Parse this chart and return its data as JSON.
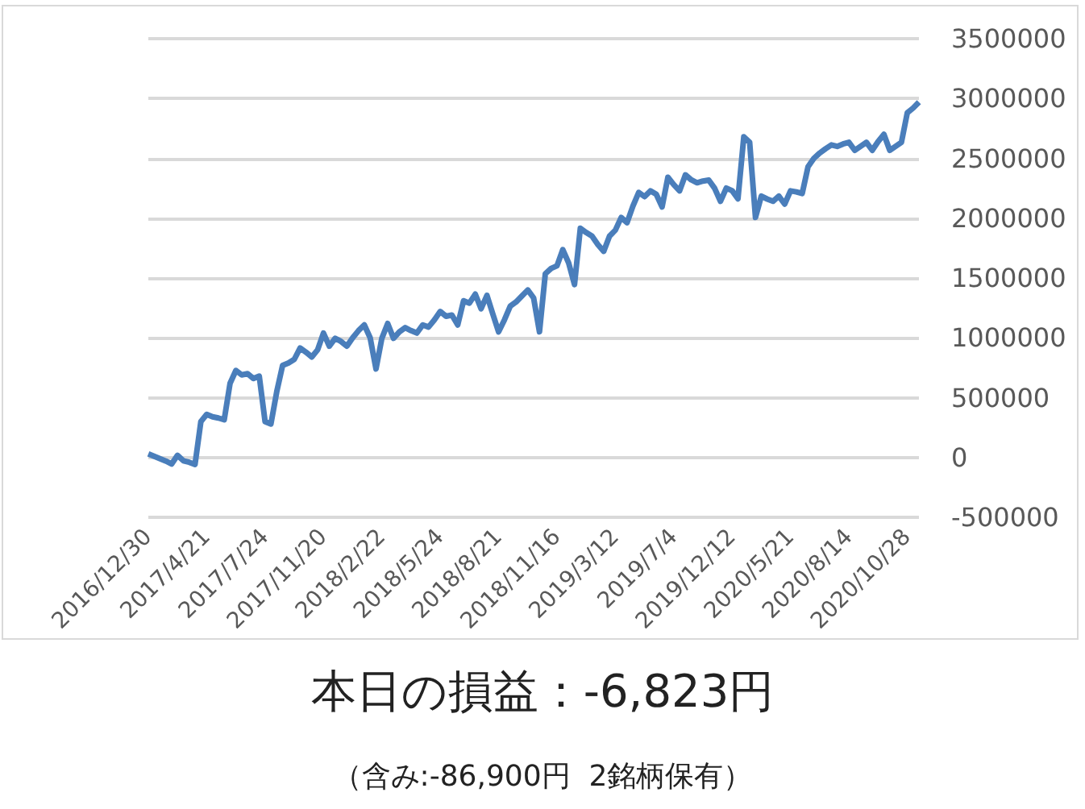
{
  "chart_data": {
    "type": "line",
    "title": "本日の損益：-6,823円",
    "subtitle": "（含み:-86,900円  2銘柄保有）",
    "categories": [
      "2016/12/30",
      null,
      null,
      null,
      null,
      null,
      null,
      null,
      null,
      null,
      "2017/4/21",
      null,
      null,
      null,
      null,
      null,
      null,
      null,
      null,
      null,
      "2017/7/24",
      null,
      null,
      null,
      null,
      null,
      null,
      null,
      null,
      null,
      "2017/11/20",
      null,
      null,
      null,
      null,
      null,
      null,
      null,
      null,
      null,
      "2018/2/22",
      null,
      null,
      null,
      null,
      null,
      null,
      null,
      null,
      null,
      "2018/5/24",
      null,
      null,
      null,
      null,
      null,
      null,
      null,
      null,
      null,
      "2018/8/21",
      null,
      null,
      null,
      null,
      null,
      null,
      null,
      null,
      null,
      "2018/11/16",
      null,
      null,
      null,
      null,
      null,
      null,
      null,
      null,
      null,
      "2019/3/12",
      null,
      null,
      null,
      null,
      null,
      null,
      null,
      null,
      null,
      "2019/7/4",
      null,
      null,
      null,
      null,
      null,
      null,
      null,
      null,
      null,
      "2019/12/12",
      null,
      null,
      null,
      null,
      null,
      null,
      null,
      null,
      null,
      "2020/5/21",
      null,
      null,
      null,
      null,
      null,
      null,
      null,
      null,
      null,
      "2020/8/14",
      null,
      null,
      null,
      null,
      null,
      null,
      null,
      null,
      null,
      "2020/10/28",
      null,
      null
    ],
    "series": [
      {
        "color": "#4a7ebb",
        "values": [
          30000,
          10000,
          -10000,
          -30000,
          -54000,
          18000,
          -27000,
          -40000,
          -58000,
          300000,
          360000,
          340000,
          330000,
          315000,
          620000,
          727000,
          690000,
          700000,
          660000,
          680000,
          300000,
          280000,
          550000,
          770000,
          790000,
          820000,
          915000,
          880000,
          840000,
          900000,
          1040000,
          930000,
          996000,
          970000,
          930000,
          1000000,
          1060000,
          1108000,
          1000000,
          740000,
          996000,
          1120000,
          996000,
          1050000,
          1085000,
          1060000,
          1040000,
          1108000,
          1090000,
          1150000,
          1220000,
          1180000,
          1190000,
          1108000,
          1310000,
          1290000,
          1365000,
          1243000,
          1355000,
          1200000,
          1050000,
          1150000,
          1265000,
          1300000,
          1350000,
          1400000,
          1333000,
          1050000,
          1535000,
          1580000,
          1602000,
          1737000,
          1625000,
          1445000,
          1916000,
          1880000,
          1850000,
          1780000,
          1723000,
          1850000,
          1900000,
          2006000,
          1962000,
          2100000,
          2215000,
          2180000,
          2228000,
          2200000,
          2094000,
          2342000,
          2280000,
          2228000,
          2362000,
          2320000,
          2296000,
          2310000,
          2318000,
          2250000,
          2141000,
          2251000,
          2230000,
          2162000,
          2680000,
          2634000,
          2006000,
          2184000,
          2160000,
          2141000,
          2184000,
          2118000,
          2228000,
          2220000,
          2206000,
          2430000,
          2500000,
          2544000,
          2580000,
          2612000,
          2600000,
          2620000,
          2634000,
          2567000,
          2600000,
          2634000,
          2567000,
          2640000,
          2700000,
          2567000,
          2600000,
          2634000,
          2880000,
          2920000,
          2970000
        ]
      }
    ],
    "ylim": [
      -500000,
      3500000
    ],
    "yticks": [
      -500000,
      0,
      500000,
      1000000,
      1500000,
      2000000,
      2500000,
      3000000,
      3500000
    ],
    "grid": "y",
    "marker": "none"
  }
}
